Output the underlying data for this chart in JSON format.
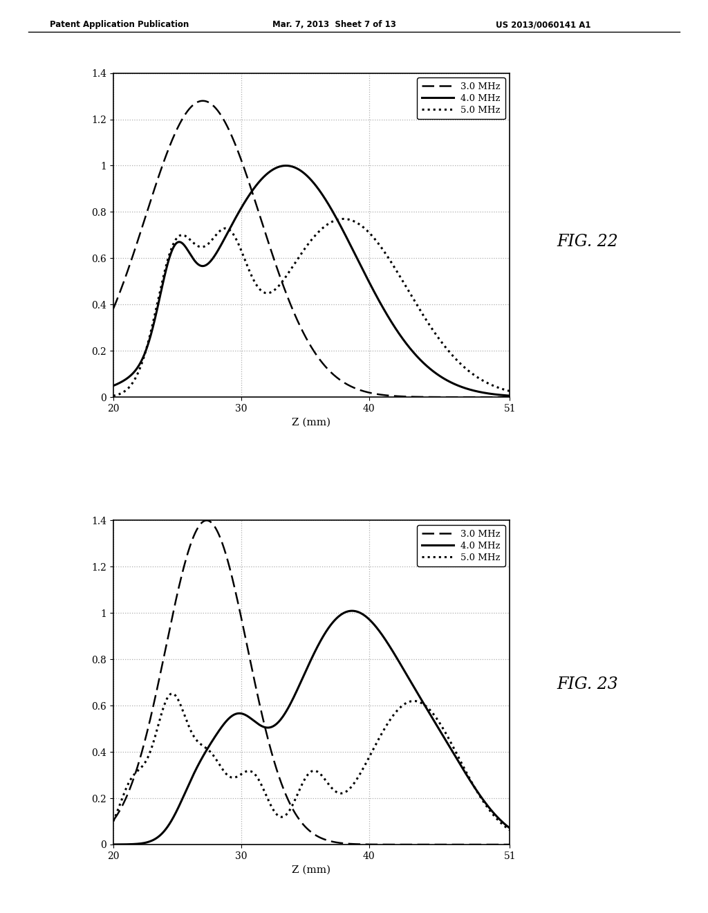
{
  "header_left": "Patent Application Publication",
  "header_mid": "Mar. 7, 2013  Sheet 7 of 13",
  "header_right": "US 2013/0060141 A1",
  "fig_label1": "FIG. 22",
  "fig_label2": "FIG. 23",
  "xlabel": "Z (mm)",
  "xlim": [
    20,
    51
  ],
  "xticks": [
    20,
    30,
    40,
    51
  ],
  "xticklabels": [
    "20",
    "30",
    "40",
    "51"
  ],
  "ylim": [
    0,
    1.4
  ],
  "yticks": [
    0,
    0.2,
    0.4,
    0.6,
    0.8,
    1,
    1.2,
    1.4
  ],
  "yticklabels": [
    "0",
    "0.2",
    "0.4",
    "0.6",
    "0.8",
    "1",
    "1.2",
    "1.4"
  ],
  "legend_labels": [
    "3.0 MHz",
    "4.0 MHz",
    "5.0 MHz"
  ],
  "background_color": "#ffffff",
  "line_color": "#000000",
  "grid_color": "#999999"
}
